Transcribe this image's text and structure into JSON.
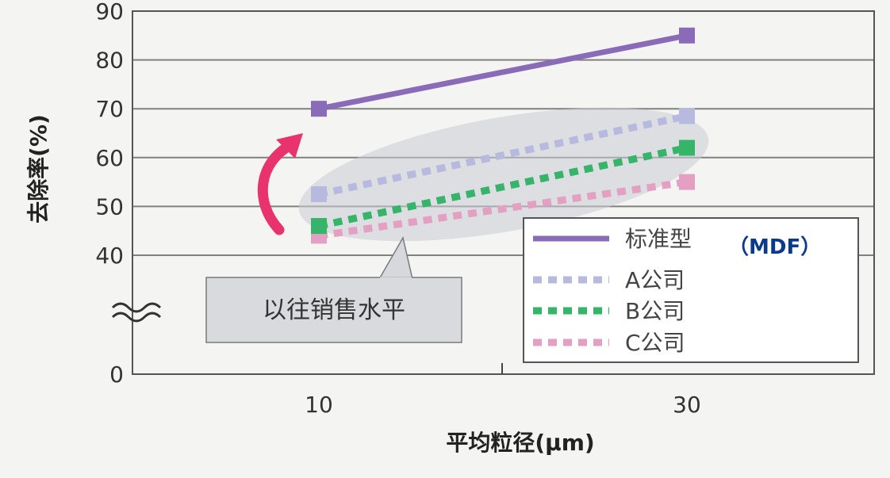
{
  "chart_data": {
    "type": "line",
    "title": "",
    "xlabel": "平均粒径(μm)",
    "ylabel": "去除率(%)",
    "x": [
      10,
      30
    ],
    "x_ticks": [
      "10",
      "30"
    ],
    "y_ticks": [
      "0",
      "40",
      "50",
      "60",
      "70",
      "80",
      "90"
    ],
    "ylim": [
      0,
      90
    ],
    "axis_break": true,
    "grid": true,
    "legend_position": "bottom-right",
    "series": [
      {
        "name": "标准型",
        "values": [
          70,
          85
        ],
        "style": "solid",
        "color": "#8a6bb8"
      },
      {
        "name": "A公司",
        "values": [
          52.5,
          68.5
        ],
        "style": "dashed",
        "color": "#b7b9de"
      },
      {
        "name": "B公司",
        "values": [
          46,
          62
        ],
        "style": "dashed",
        "color": "#35b46a"
      },
      {
        "name": "C公司",
        "values": [
          44,
          55
        ],
        "style": "dashed",
        "color": "#e4a0c2"
      }
    ],
    "legend_note": "（MDF）",
    "annotation": "以往销售水平"
  },
  "colors": {
    "arrow": "#e8336f",
    "ellipse": "#c8ccd3",
    "grid": "#808080"
  }
}
